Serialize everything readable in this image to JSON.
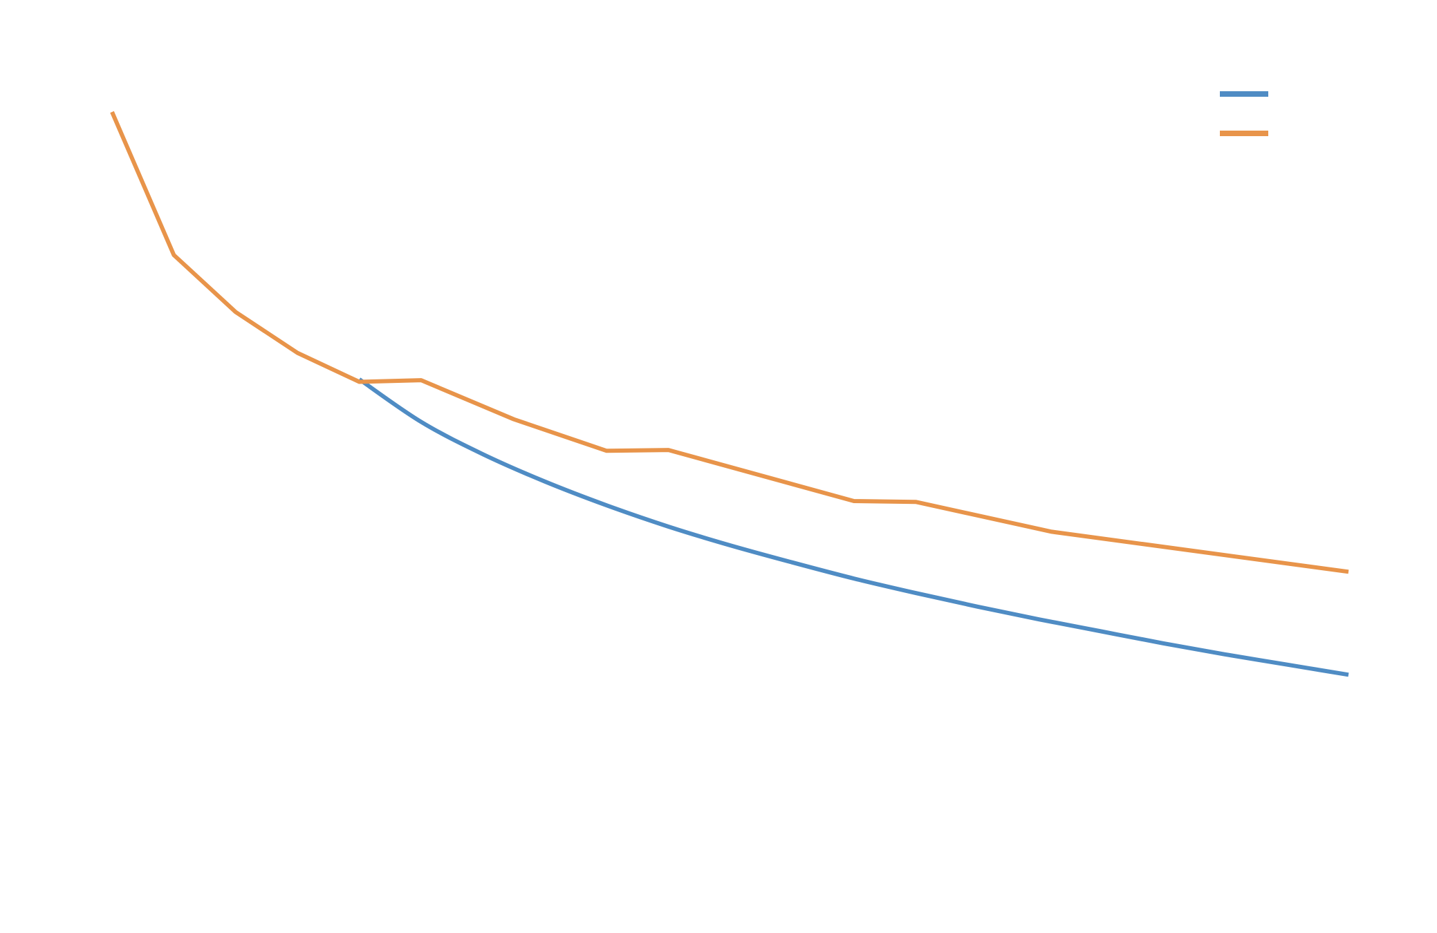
{
  "chart_data": {
    "type": "line",
    "title": "",
    "xlabel": "",
    "ylabel": "",
    "grid": false,
    "legend_position": "top-right",
    "xlim": [
      0,
      20
    ],
    "ylim": [
      0,
      10
    ],
    "series": [
      {
        "name": "",
        "color": "#4f8cc4",
        "curve": "smooth",
        "points": [
          {
            "x": 4,
            "y": 6.3
          },
          {
            "x": 5,
            "y": 5.8
          },
          {
            "x": 6,
            "y": 5.42
          },
          {
            "x": 7,
            "y": 5.1
          },
          {
            "x": 8,
            "y": 4.82
          },
          {
            "x": 9,
            "y": 4.57
          },
          {
            "x": 10,
            "y": 4.35
          },
          {
            "x": 11,
            "y": 4.15
          },
          {
            "x": 12,
            "y": 3.96
          },
          {
            "x": 13,
            "y": 3.79
          },
          {
            "x": 14,
            "y": 3.63
          },
          {
            "x": 15,
            "y": 3.48
          },
          {
            "x": 16,
            "y": 3.34
          },
          {
            "x": 17,
            "y": 3.2
          },
          {
            "x": 18,
            "y": 3.07
          },
          {
            "x": 19,
            "y": 2.95
          },
          {
            "x": 20,
            "y": 2.83
          }
        ]
      },
      {
        "name": "",
        "color": "#e8944a",
        "curve": "linear",
        "points": [
          {
            "x": 0,
            "y": 9.44
          },
          {
            "x": 1,
            "y": 7.76
          },
          {
            "x": 2,
            "y": 7.09
          },
          {
            "x": 3,
            "y": 6.61
          },
          {
            "x": 4,
            "y": 6.27
          },
          {
            "x": 5,
            "y": 6.29
          },
          {
            "x": 6.5,
            "y": 5.83
          },
          {
            "x": 8,
            "y": 5.46
          },
          {
            "x": 9,
            "y": 5.47
          },
          {
            "x": 12,
            "y": 4.87
          },
          {
            "x": 13,
            "y": 4.86
          },
          {
            "x": 15.2,
            "y": 4.51
          },
          {
            "x": 20,
            "y": 4.04
          }
        ]
      }
    ]
  }
}
